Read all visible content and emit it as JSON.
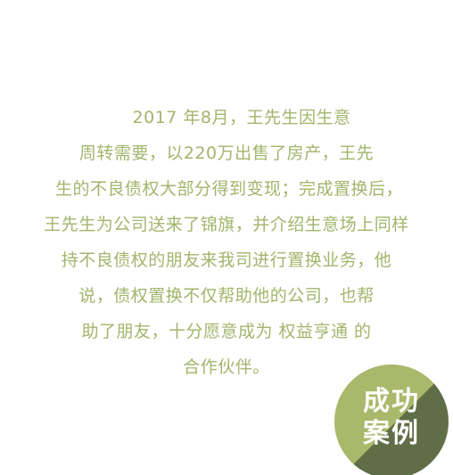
{
  "story": {
    "lines": [
      "2017 年8月，王先生因生意",
      "周转需要，以220万出售了房产，王先",
      "生的不良债权大部分得到变现；完成置换后，",
      "王先生为公司送来了锦旗，并介绍生意场上同样",
      "持不良债权的朋友来我司进行置换业务，他",
      "说，债权置换不仅帮助他的公司，也帮",
      "助了朋友，十分愿意成为 权益亨通 的",
      "合作伙伴。"
    ]
  },
  "badge": {
    "line1": "成功",
    "line2": "案例",
    "colors": {
      "light": "#a9b86a",
      "dark": "#5f6e47",
      "text": "#ffffff"
    }
  },
  "colors": {
    "body_text": "#a4b46c",
    "background": "#ffffff"
  }
}
